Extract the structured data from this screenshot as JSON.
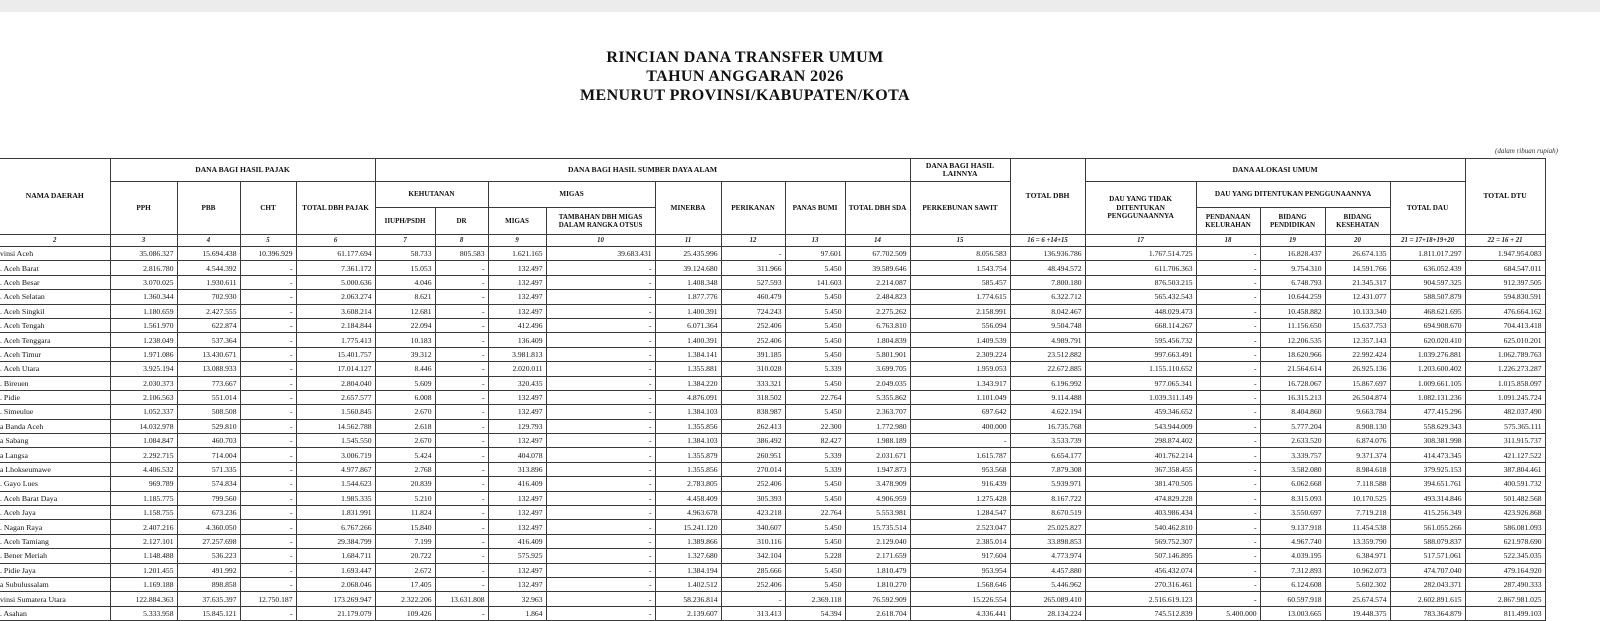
{
  "title": {
    "line1": "RINCIAN DANA TRANSFER UMUM",
    "line2": "TAHUN ANGGARAN 2026",
    "line3": "MENURUT PROVINSI/KABUPATEN/KOTA"
  },
  "note": "(dalam ribuan rupiah)",
  "table": {
    "headers": {
      "nama_daerah": "NAMA DAERAH",
      "dbh_pajak": "DANA BAGI HASIL PAJAK",
      "pph": "PPH",
      "pbb": "PBB",
      "cht": "CHT",
      "total_dbh_pajak": "TOTAL DBH PAJAK",
      "dbh_sda": "DANA BAGI HASIL SUMBER DAYA ALAM",
      "kehutanan": "KEHUTANAN",
      "iiuph": "IIUPH/PSDH",
      "dr": "DR",
      "migas_group": "MIGAS",
      "migas": "MIGAS",
      "tambahan_migas": "TAMBAHAN DBH MIGAS DALAM RANGKA OTSUS",
      "minerba": "MINERBA",
      "perikanan": "PERIKANAN",
      "panas_bumi": "PANAS BUMI",
      "total_dbh_sda": "TOTAL DBH SDA",
      "dbh_lainnya": "DANA BAGI HASIL LAINNYA",
      "sawit": "PERKEBUNAN SAWIT",
      "total_dbh": "TOTAL DBH",
      "dau": "DANA ALOKASI UMUM",
      "dau_tidak": "DAU YANG TIDAK DITENTUKAN PENGGUNAANNYA",
      "dau_ditentukan": "DAU YANG DITENTUKAN PENGGUNAANNYA",
      "kelurahan": "PENDANAAN KELURAHAN",
      "pendidikan": "BIDANG PENDIDIKAN",
      "kesehatan": "BIDANG KESEHATAN",
      "total_dau": "TOTAL DAU",
      "total_dtu": "TOTAL DTU"
    },
    "col_index": [
      "2",
      "3",
      "4",
      "5",
      "6",
      "7",
      "8",
      "9",
      "10",
      "11",
      "12",
      "13",
      "14",
      "15",
      "16 = 6 +14+15",
      "17",
      "18",
      "19",
      "20",
      "21 = 17+18+19+20",
      "22 = 16 + 21"
    ],
    "rows": [
      {
        "name": "vinsi Aceh",
        "values": [
          "35.086.327",
          "15.694.438",
          "10.396.929",
          "61.177.694",
          "58.733",
          "805.583",
          "1.621.165",
          "39.683.431",
          "25.435.996",
          "-",
          "97.601",
          "67.702.509",
          "8.056.583",
          "136.936.786",
          "1.767.514.725",
          "-",
          "16.828.437",
          "26.674.135",
          "1.811.017.297",
          "1.947.954.083"
        ]
      },
      {
        "name": ". Aceh Barat",
        "values": [
          "2.816.780",
          "4.544.392",
          "-",
          "7.361.172",
          "15.053",
          "-",
          "132.497",
          "-",
          "39.124.680",
          "311.966",
          "5.450",
          "39.589.646",
          "1.543.754",
          "48.494.572",
          "611.706.363",
          "-",
          "9.754.310",
          "14.591.766",
          "636.052.439",
          "684.547.011"
        ]
      },
      {
        "name": ". Aceh Besar",
        "values": [
          "3.070.025",
          "1.930.611",
          "-",
          "5.000.636",
          "4.046",
          "-",
          "132.497",
          "-",
          "1.408.348",
          "527.593",
          "141.603",
          "2.214.087",
          "585.457",
          "7.800.180",
          "876.503.215",
          "-",
          "6.748.793",
          "21.345.317",
          "904.597.325",
          "912.397.505"
        ]
      },
      {
        "name": ". Aceh Selatan",
        "values": [
          "1.360.344",
          "702.930",
          "-",
          "2.063.274",
          "8.621",
          "-",
          "132.497",
          "-",
          "1.877.776",
          "460.479",
          "5.450",
          "2.484.823",
          "1.774.615",
          "6.322.712",
          "565.432.543",
          "-",
          "10.644.259",
          "12.431.077",
          "588.507.879",
          "594.830.591"
        ]
      },
      {
        "name": ". Aceh Singkil",
        "values": [
          "1.180.659",
          "2.427.555",
          "-",
          "3.608.214",
          "12.681",
          "-",
          "132.497",
          "-",
          "1.400.391",
          "724.243",
          "5.450",
          "2.275.262",
          "2.158.991",
          "8.042.467",
          "448.029.473",
          "-",
          "10.458.882",
          "10.133.340",
          "468.621.695",
          "476.664.162"
        ]
      },
      {
        "name": ". Aceh Tengah",
        "values": [
          "1.561.970",
          "622.874",
          "-",
          "2.184.844",
          "22.094",
          "-",
          "412.496",
          "-",
          "6.071.364",
          "252.406",
          "5.450",
          "6.763.810",
          "556.094",
          "9.504.748",
          "668.114.267",
          "-",
          "11.156.650",
          "15.637.753",
          "694.908.670",
          "704.413.418"
        ]
      },
      {
        "name": ". Aceh Tenggara",
        "values": [
          "1.238.049",
          "537.364",
          "-",
          "1.775.413",
          "10.183",
          "-",
          "136.409",
          "-",
          "1.400.391",
          "252.406",
          "5.450",
          "1.804.839",
          "1.409.539",
          "4.989.791",
          "595.456.732",
          "-",
          "12.206.535",
          "12.357.143",
          "620.020.410",
          "625.010.201"
        ]
      },
      {
        "name": ". Aceh Timur",
        "values": [
          "1.971.086",
          "13.430.671",
          "-",
          "15.401.757",
          "39.312",
          "-",
          "3.981.813",
          "-",
          "1.384.141",
          "391.185",
          "5.450",
          "5.801.901",
          "2.309.224",
          "23.512.882",
          "997.663.491",
          "-",
          "18.620.966",
          "22.992.424",
          "1.039.276.881",
          "1.062.789.763"
        ]
      },
      {
        "name": ". Aceh Utara",
        "values": [
          "3.925.194",
          "13.088.933",
          "-",
          "17.014.127",
          "8.446",
          "-",
          "2.020.011",
          "-",
          "1.355.881",
          "310.028",
          "5.339",
          "3.699.705",
          "1.959.053",
          "22.672.885",
          "1.155.110.652",
          "-",
          "21.564.614",
          "26.925.136",
          "1.203.600.402",
          "1.226.273.287"
        ]
      },
      {
        "name": ". Bireuen",
        "values": [
          "2.030.373",
          "773.667",
          "-",
          "2.804.040",
          "5.609",
          "-",
          "320.435",
          "-",
          "1.384.220",
          "333.321",
          "5.450",
          "2.049.035",
          "1.343.917",
          "6.196.992",
          "977.065.341",
          "-",
          "16.728.067",
          "15.867.697",
          "1.009.661.105",
          "1.015.858.097"
        ]
      },
      {
        "name": ". Pidie",
        "values": [
          "2.106.563",
          "551.014",
          "-",
          "2.657.577",
          "6.008",
          "-",
          "132.497",
          "-",
          "4.876.091",
          "318.502",
          "22.764",
          "5.355.862",
          "1.101.049",
          "9.114.488",
          "1.039.311.149",
          "-",
          "16.315.213",
          "26.504.874",
          "1.082.131.236",
          "1.091.245.724"
        ]
      },
      {
        "name": ". Simeulue",
        "values": [
          "1.052.337",
          "508.508",
          "-",
          "1.560.845",
          "2.670",
          "-",
          "132.497",
          "-",
          "1.384.103",
          "838.987",
          "5.450",
          "2.363.707",
          "697.642",
          "4.622.194",
          "459.346.652",
          "-",
          "8.404.860",
          "9.663.784",
          "477.415.296",
          "482.037.490"
        ]
      },
      {
        "name": "a Banda Aceh",
        "values": [
          "14.032.978",
          "529.810",
          "-",
          "14.562.788",
          "2.618",
          "-",
          "129.793",
          "-",
          "1.355.856",
          "262.413",
          "22.300",
          "1.772.980",
          "400.000",
          "16.735.768",
          "543.944.009",
          "-",
          "5.777.204",
          "8.908.130",
          "558.629.343",
          "575.365.111"
        ]
      },
      {
        "name": "a Sabang",
        "values": [
          "1.084.847",
          "460.703",
          "-",
          "1.545.550",
          "2.670",
          "-",
          "132.497",
          "-",
          "1.384.103",
          "386.492",
          "82.427",
          "1.988.189",
          "-",
          "3.533.739",
          "298.874.402",
          "-",
          "2.633.520",
          "6.874.076",
          "308.381.998",
          "311.915.737"
        ]
      },
      {
        "name": "a Langsa",
        "values": [
          "2.292.715",
          "714.004",
          "-",
          "3.006.719",
          "5.424",
          "-",
          "404.078",
          "-",
          "1.355.879",
          "260.951",
          "5.339",
          "2.031.671",
          "1.615.787",
          "6.654.177",
          "401.762.214",
          "-",
          "3.339.757",
          "9.371.374",
          "414.473.345",
          "421.127.522"
        ]
      },
      {
        "name": "a Lhokseumawe",
        "values": [
          "4.406.532",
          "571.335",
          "-",
          "4.977.867",
          "2.768",
          "-",
          "313.896",
          "-",
          "1.355.856",
          "270.014",
          "5.339",
          "1.947.873",
          "953.568",
          "7.879.308",
          "367.358.455",
          "-",
          "3.582.080",
          "8.984.618",
          "379.925.153",
          "387.804.461"
        ]
      },
      {
        "name": ". Gayo Lues",
        "values": [
          "969.789",
          "574.834",
          "-",
          "1.544.623",
          "20.839",
          "-",
          "416.409",
          "-",
          "2.783.805",
          "252.406",
          "5.450",
          "3.478.909",
          "916.439",
          "5.939.971",
          "381.470.505",
          "-",
          "6.062.668",
          "7.118.588",
          "394.651.761",
          "400.591.732"
        ]
      },
      {
        "name": ". Aceh Barat Daya",
        "values": [
          "1.185.775",
          "799.560",
          "-",
          "1.985.335",
          "5.210",
          "-",
          "132.497",
          "-",
          "4.458.409",
          "305.393",
          "5.450",
          "4.906.959",
          "1.275.428",
          "8.167.722",
          "474.829.228",
          "-",
          "8.315.093",
          "10.170.525",
          "493.314.846",
          "501.482.568"
        ]
      },
      {
        "name": ". Aceh Jaya",
        "values": [
          "1.158.755",
          "673.236",
          "-",
          "1.831.991",
          "11.824",
          "-",
          "132.497",
          "-",
          "4.963.678",
          "423.218",
          "22.764",
          "5.553.981",
          "1.284.547",
          "8.670.519",
          "403.986.434",
          "-",
          "3.550.697",
          "7.719.218",
          "415.256.349",
          "423.926.868"
        ]
      },
      {
        "name": ". Nagan Raya",
        "values": [
          "2.407.216",
          "4.360.050",
          "-",
          "6.767.266",
          "15.840",
          "-",
          "132.497",
          "-",
          "15.241.120",
          "340.607",
          "5.450",
          "15.735.514",
          "2.523.047",
          "25.025.827",
          "540.462.810",
          "-",
          "9.137.918",
          "11.454.538",
          "561.055.266",
          "586.081.093"
        ]
      },
      {
        "name": ". Aceh Tamiang",
        "values": [
          "2.127.101",
          "27.257.698",
          "-",
          "29.384.799",
          "7.199",
          "-",
          "416.409",
          "-",
          "1.389.866",
          "310.116",
          "5.450",
          "2.129.040",
          "2.385.014",
          "33.898.853",
          "569.752.307",
          "-",
          "4.967.740",
          "13.359.790",
          "588.079.837",
          "621.978.690"
        ]
      },
      {
        "name": ". Bener Meriah",
        "values": [
          "1.148.488",
          "536.223",
          "-",
          "1.684.711",
          "20.722",
          "-",
          "575.925",
          "-",
          "1.327.680",
          "342.104",
          "5.228",
          "2.171.659",
          "917.604",
          "4.773.974",
          "507.146.895",
          "-",
          "4.039.195",
          "6.384.971",
          "517.571.061",
          "522.345.035"
        ]
      },
      {
        "name": ". Pidie Jaya",
        "values": [
          "1.201.455",
          "491.992",
          "-",
          "1.693.447",
          "2.672",
          "-",
          "132.497",
          "-",
          "1.384.194",
          "285.666",
          "5.450",
          "1.810.479",
          "953.954",
          "4.457.880",
          "456.432.074",
          "-",
          "7.312.893",
          "10.962.073",
          "474.707.040",
          "479.164.920"
        ]
      },
      {
        "name": "a Subulussalam",
        "values": [
          "1.169.188",
          "898.858",
          "-",
          "2.068.046",
          "17.405",
          "-",
          "132.497",
          "-",
          "1.402.512",
          "252.406",
          "5.450",
          "1.810.270",
          "1.568.646",
          "5.446.962",
          "270.316.461",
          "-",
          "6.124.608",
          "5.602.302",
          "282.043.371",
          "287.490.333"
        ]
      },
      {
        "name": "vinsi Sumatera Utara",
        "values": [
          "122.884.363",
          "37.635.397",
          "12.750.187",
          "173.269.947",
          "2.322.206",
          "13.631.808",
          "32.963",
          "-",
          "58.236.814",
          "-",
          "2.369.118",
          "76.592.909",
          "15.226.554",
          "265.089.410",
          "2.516.619.123",
          "-",
          "60.597.918",
          "25.674.574",
          "2.602.891.615",
          "2.867.981.025"
        ]
      },
      {
        "name": ". Asahan",
        "values": [
          "5.333.958",
          "15.845.121",
          "-",
          "21.179.079",
          "109.426",
          "-",
          "1.864",
          "-",
          "2.139.607",
          "313.413",
          "54.394",
          "2.618.704",
          "4.336.441",
          "28.134.224",
          "745.512.839",
          "5.400.000",
          "13.003.665",
          "19.448.375",
          "783.364.879",
          "811.499.103"
        ]
      }
    ]
  }
}
